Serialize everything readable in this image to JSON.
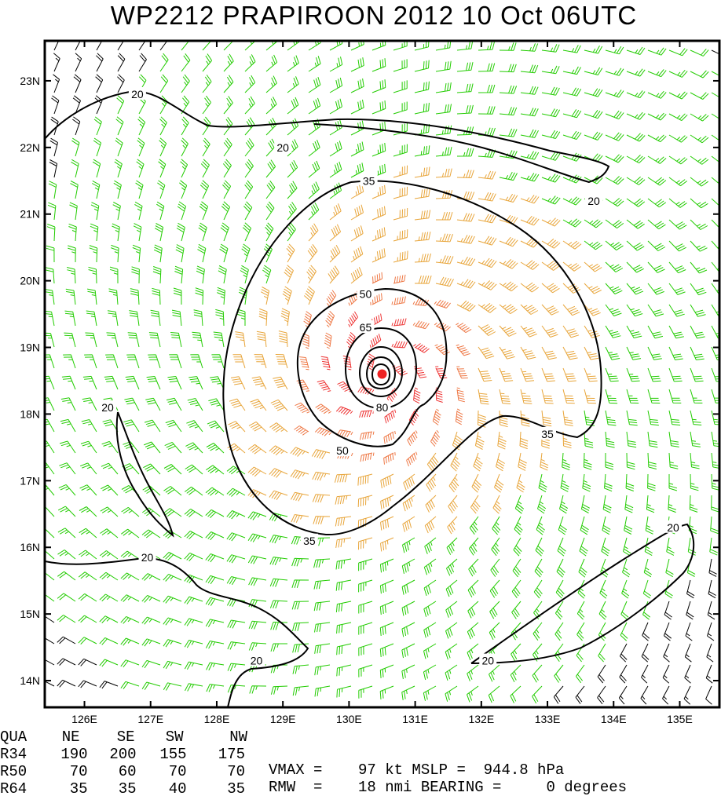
{
  "title": "WP2212  PRAPIROON 2012 10 Oct 06UTC",
  "chart_data": {
    "type": "wind-barb-map",
    "xaxis": {
      "range": [
        125.4,
        135.6
      ],
      "ticks": [
        126,
        127,
        128,
        129,
        130,
        131,
        132,
        133,
        134,
        135
      ],
      "tick_labels": [
        "126E",
        "127E",
        "128E",
        "129E",
        "130E",
        "131E",
        "132E",
        "133E",
        "134E",
        "135E"
      ]
    },
    "yaxis": {
      "range": [
        13.6,
        23.6
      ],
      "ticks": [
        14,
        15,
        16,
        17,
        18,
        19,
        20,
        21,
        22,
        23
      ],
      "tick_labels": [
        "14N",
        "15N",
        "16N",
        "17N",
        "18N",
        "19N",
        "20N",
        "21N",
        "22N",
        "23N"
      ]
    },
    "center": {
      "lon": 130.5,
      "lat": 18.6
    },
    "contour_levels": [
      20,
      35,
      50,
      65,
      80
    ],
    "contour_labels": [
      {
        "text": "20",
        "lon": 126.8,
        "lat": 22.8
      },
      {
        "text": "20",
        "lon": 129.0,
        "lat": 22.0
      },
      {
        "text": "20",
        "lon": 133.7,
        "lat": 21.2
      },
      {
        "text": "20",
        "lon": 126.35,
        "lat": 18.1
      },
      {
        "text": "20",
        "lon": 126.95,
        "lat": 15.85
      },
      {
        "text": "20",
        "lon": 128.6,
        "lat": 14.3
      },
      {
        "text": "20",
        "lon": 132.1,
        "lat": 14.3
      },
      {
        "text": "20",
        "lon": 134.9,
        "lat": 16.3
      },
      {
        "text": "35",
        "lon": 130.3,
        "lat": 21.5
      },
      {
        "text": "35",
        "lon": 133.0,
        "lat": 17.7
      },
      {
        "text": "35",
        "lon": 129.4,
        "lat": 16.1
      },
      {
        "text": "50",
        "lon": 130.25,
        "lat": 19.8
      },
      {
        "text": "50",
        "lon": 129.9,
        "lat": 17.45
      },
      {
        "text": "65",
        "lon": 130.25,
        "lat": 19.3
      },
      {
        "text": "80",
        "lon": 130.5,
        "lat": 18.1
      }
    ],
    "barb_color_bins": [
      {
        "min_kt": 0,
        "max_kt": 20,
        "color": "#000000"
      },
      {
        "min_kt": 20,
        "max_kt": 35,
        "color": "#22cc00"
      },
      {
        "min_kt": 35,
        "max_kt": 50,
        "color": "#e8a53a"
      },
      {
        "min_kt": 50,
        "max_kt": 65,
        "color": "#ee7744"
      },
      {
        "min_kt": 65,
        "max_kt": 200,
        "color": "#ee3333"
      }
    ],
    "center_color": "#ee2222"
  },
  "info": {
    "quadrant_header": [
      "QUA",
      "NE",
      "SE",
      "SW",
      "NW"
    ],
    "rows": [
      [
        "R34",
        "190",
        "200",
        "155",
        "175"
      ],
      [
        "R50",
        "70",
        "60",
        "70",
        "70"
      ],
      [
        "R64",
        "35",
        "35",
        "40",
        "35"
      ]
    ],
    "line1": "VMAX =    97 kt MSLP =  944.8 hPa",
    "line2": "RMW  =    18 nmi BEARING =     0 degrees"
  }
}
